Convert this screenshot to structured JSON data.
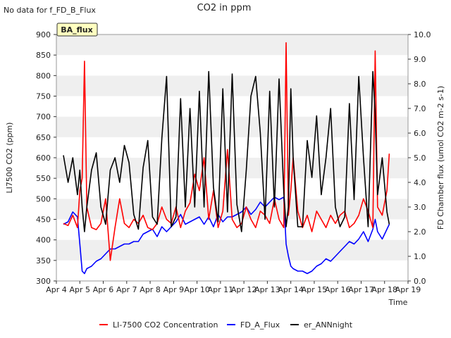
{
  "chart_data": {
    "type": "line",
    "title": "CO2 in ppm",
    "corner_note": "No data for f_FD_B_Flux",
    "badge": "BA_flux",
    "xlabel": "Time",
    "ylabel_left": "LI7500 CO2 (ppm)",
    "ylabel_right": "FD Chamber flux (umol CO2 m-2 s-1)",
    "ylim_left": [
      300,
      900
    ],
    "ylim_right": [
      0.0,
      10.0
    ],
    "grid": "horizontal bands",
    "legend_position": "bottom-center",
    "x_ticks": [
      "Apr 4",
      "Apr 5",
      "Apr 6",
      "Apr 7",
      "Apr 8",
      "Apr 9",
      "Apr 10",
      "Apr 11",
      "Apr 12",
      "Apr 13",
      "Apr 14",
      "Apr 15",
      "Apr 16",
      "Apr 17",
      "Apr 18",
      "Apr 19"
    ],
    "y_ticks_left": [
      "300",
      "350",
      "400",
      "450",
      "500",
      "550",
      "600",
      "650",
      "700",
      "750",
      "800",
      "850",
      "900"
    ],
    "y_ticks_right": [
      "0.0",
      "1.0",
      "2.0",
      "3.0",
      "4.0",
      "5.0",
      "6.0",
      "7.0",
      "8.0",
      "9.0",
      "10.0"
    ],
    "series": [
      {
        "name": "LI-7500 CO2 Concentration",
        "color": "#ff0000",
        "axis": "left",
        "x": [
          4.3,
          4.5,
          4.7,
          4.9,
          5.0,
          5.1,
          5.2,
          5.3,
          5.5,
          5.7,
          5.9,
          6.1,
          6.3,
          6.5,
          6.7,
          6.9,
          7.1,
          7.3,
          7.5,
          7.7,
          7.9,
          8.1,
          8.3,
          8.5,
          8.7,
          8.9,
          9.1,
          9.3,
          9.5,
          9.7,
          9.9,
          10.1,
          10.3,
          10.5,
          10.7,
          10.9,
          11.1,
          11.3,
          11.5,
          11.7,
          11.9,
          12.1,
          12.3,
          12.5,
          12.7,
          12.9,
          13.1,
          13.3,
          13.5,
          13.7,
          13.8,
          13.9,
          14.0,
          14.1,
          14.3,
          14.5,
          14.7,
          14.9,
          15.1,
          15.3,
          15.5,
          15.7,
          15.9,
          16.1,
          16.3,
          16.5,
          16.7,
          16.9,
          17.1,
          17.3,
          17.5,
          17.6,
          17.7,
          17.9,
          18.1,
          18.2
        ],
        "y": [
          440,
          435,
          460,
          430,
          520,
          550,
          835,
          480,
          430,
          425,
          440,
          500,
          350,
          430,
          500,
          440,
          430,
          450,
          440,
          460,
          430,
          425,
          440,
          480,
          450,
          440,
          480,
          430,
          470,
          490,
          560,
          520,
          600,
          450,
          520,
          430,
          470,
          620,
          450,
          430,
          440,
          480,
          450,
          430,
          470,
          460,
          440,
          500,
          450,
          430,
          880,
          460,
          520,
          600,
          470,
          430,
          460,
          420,
          470,
          450,
          430,
          460,
          440,
          460,
          470,
          430,
          440,
          460,
          500,
          470,
          430,
          860,
          480,
          460,
          520,
          610
        ]
      },
      {
        "name": "FD_A_Flux",
        "color": "#0000ff",
        "axis": "right",
        "x": [
          4.3,
          4.5,
          4.7,
          4.9,
          5.0,
          5.1,
          5.2,
          5.3,
          5.5,
          5.7,
          5.9,
          6.1,
          6.3,
          6.5,
          6.7,
          6.9,
          7.1,
          7.3,
          7.5,
          7.7,
          7.9,
          8.1,
          8.3,
          8.5,
          8.7,
          8.9,
          9.1,
          9.3,
          9.5,
          9.7,
          9.9,
          10.1,
          10.3,
          10.5,
          10.7,
          10.9,
          11.1,
          11.3,
          11.5,
          11.7,
          11.9,
          12.1,
          12.3,
          12.5,
          12.7,
          12.9,
          13.1,
          13.3,
          13.5,
          13.7,
          13.8,
          13.9,
          14.0,
          14.1,
          14.3,
          14.5,
          14.7,
          14.9,
          15.1,
          15.3,
          15.5,
          15.7,
          15.9,
          16.1,
          16.3,
          16.5,
          16.7,
          16.9,
          17.1,
          17.3,
          17.5,
          17.6,
          17.7,
          17.9,
          18.1,
          18.2
        ],
        "y": [
          2.3,
          2.4,
          2.8,
          2.6,
          1.5,
          0.4,
          0.3,
          0.5,
          0.6,
          0.8,
          0.9,
          1.1,
          1.3,
          1.3,
          1.4,
          1.5,
          1.5,
          1.6,
          1.6,
          1.9,
          2.0,
          2.1,
          1.8,
          2.2,
          2.0,
          2.2,
          2.4,
          2.7,
          2.3,
          2.4,
          2.5,
          2.6,
          2.3,
          2.6,
          2.2,
          2.7,
          2.4,
          2.6,
          2.6,
          2.7,
          2.8,
          3.0,
          2.7,
          2.9,
          3.2,
          3.0,
          3.2,
          3.4,
          3.3,
          3.4,
          1.5,
          1.0,
          0.6,
          0.5,
          0.4,
          0.4,
          0.3,
          0.4,
          0.6,
          0.7,
          0.9,
          0.8,
          1.0,
          1.2,
          1.4,
          1.6,
          1.5,
          1.7,
          2.0,
          1.6,
          2.1,
          2.5,
          2.0,
          1.7,
          2.1,
          2.3
        ]
      },
      {
        "name": "er_ANNnight",
        "color": "#000000",
        "axis": "right",
        "x": [
          4.3,
          4.5,
          4.7,
          4.9,
          5.0,
          5.1,
          5.2,
          5.3,
          5.5,
          5.7,
          5.9,
          6.1,
          6.3,
          6.5,
          6.7,
          6.9,
          7.1,
          7.3,
          7.5,
          7.7,
          7.9,
          8.1,
          8.3,
          8.5,
          8.7,
          8.9,
          9.1,
          9.3,
          9.5,
          9.7,
          9.9,
          10.1,
          10.3,
          10.5,
          10.7,
          10.9,
          11.1,
          11.3,
          11.5,
          11.7,
          11.9,
          12.1,
          12.3,
          12.5,
          12.7,
          12.9,
          13.1,
          13.3,
          13.5,
          13.7,
          13.8,
          13.9,
          14.0,
          14.1,
          14.3,
          14.5,
          14.7,
          14.9,
          15.1,
          15.3,
          15.5,
          15.7,
          15.9,
          16.1,
          16.3,
          16.5,
          16.7,
          16.9,
          17.1,
          17.3,
          17.5,
          17.6,
          17.7,
          17.9,
          18.1,
          18.2
        ],
        "y": [
          5.1,
          4.0,
          5.0,
          3.5,
          4.5,
          3.0,
          2.0,
          3.0,
          4.5,
          5.2,
          3.0,
          2.3,
          4.5,
          5.0,
          4.0,
          5.5,
          4.8,
          2.7,
          2.1,
          4.6,
          5.7,
          2.6,
          2.3,
          5.8,
          8.3,
          2.2,
          2.6,
          7.4,
          3.0,
          7.0,
          3.0,
          7.7,
          3.0,
          8.5,
          3.8,
          2.4,
          7.8,
          2.8,
          8.4,
          3.1,
          2.0,
          4.5,
          7.5,
          8.3,
          6.0,
          2.5,
          7.7,
          3.0,
          8.2,
          3.6,
          2.2,
          3.0,
          7.8,
          5.0,
          2.2,
          2.2,
          5.7,
          4.2,
          6.7,
          3.5,
          5.0,
          7.0,
          3.0,
          2.2,
          2.6,
          7.2,
          3.3,
          8.3,
          5.0,
          2.2,
          8.5,
          6.8,
          3.5,
          5.0,
          2.8,
          2.3
        ]
      }
    ]
  }
}
